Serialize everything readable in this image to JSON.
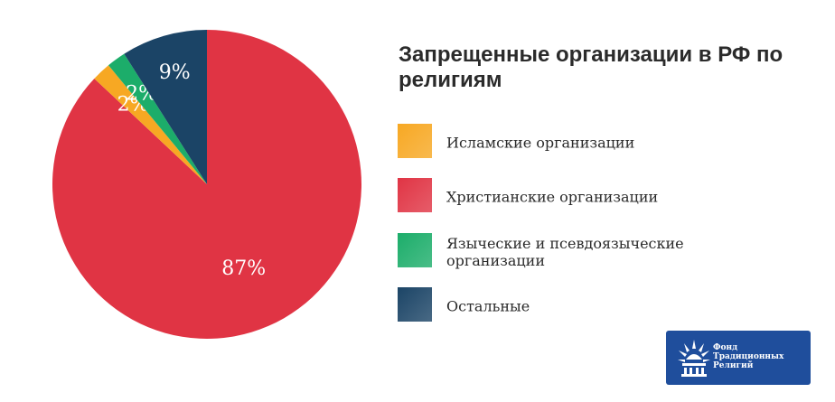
{
  "chart_data": {
    "type": "pie",
    "title": "Запрещенные организации в РФ по религиям",
    "start": "top",
    "direction": "clockwise",
    "slices": [
      {
        "name": "Христианские организации",
        "value": 87,
        "label": "87%",
        "color": "#e03444"
      },
      {
        "name": "Исламские организации",
        "value": 2,
        "label": "2%",
        "color": "#f7a823"
      },
      {
        "name": "Языческие и псевдоязыческие организации",
        "value": 2,
        "label": "2%",
        "color": "#1cad6a"
      },
      {
        "name": "Остальные",
        "value": 9,
        "label": "9%",
        "color": "#1b4466"
      }
    ],
    "legend": [
      {
        "label": "Исламские организации",
        "color": "#f7a823"
      },
      {
        "label": "Христианские организации",
        "color": "#e03444"
      },
      {
        "label": "Языческие и псевдоязыческие организации",
        "color": "#1cad6a"
      },
      {
        "label": "Остальные",
        "color": "#1b4466"
      }
    ],
    "legend_placement": "right"
  },
  "logo": {
    "text": "Фонд Традиционных Религий",
    "background": "#1f4e9c"
  }
}
